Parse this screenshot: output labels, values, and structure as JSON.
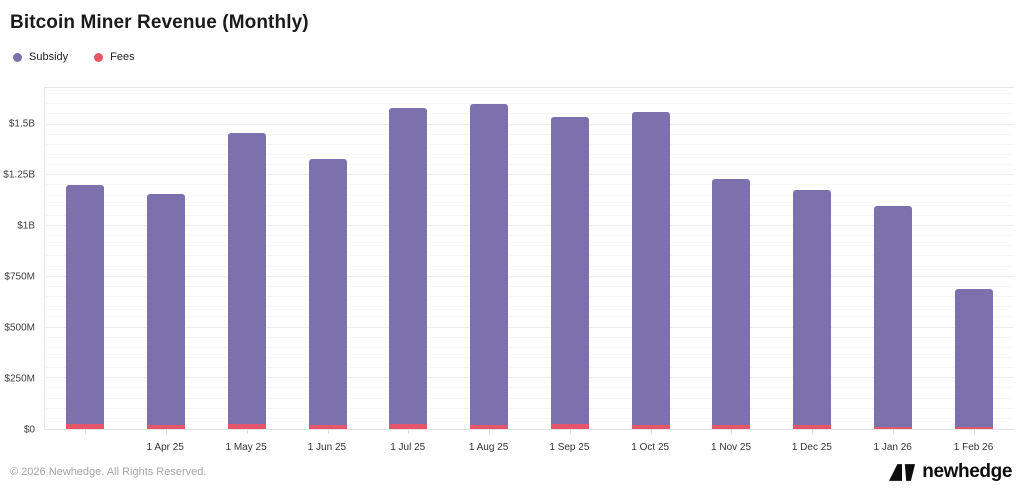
{
  "title": "Bitcoin Miner Revenue (Monthly)",
  "legend": [
    {
      "label": "Subsidy",
      "color": "#7C71AD"
    },
    {
      "label": "Fees",
      "color": "#E5566B"
    }
  ],
  "footer": {
    "copyright": "© 2026 Newhedge. All Rights Reserved.",
    "brand": "newhedge"
  },
  "chart_data": {
    "type": "bar",
    "stacked": true,
    "title": "Bitcoin Miner Revenue (Monthly)",
    "unit": "USD millions",
    "legend_position": "top-left",
    "grid": true,
    "grid_step": 50,
    "ylim": [
      0,
      1680
    ],
    "categories": [
      "",
      "1 Apr 25",
      "1 May 25",
      "1 Jun 25",
      "1 Jul 25",
      "1 Aug 25",
      "1 Sep 25",
      "1 Oct 25",
      "1 Nov 25",
      "1 Dec 25",
      "1 Jan 26",
      "1 Feb 26"
    ],
    "series": [
      {
        "name": "Subsidy",
        "color": "#7C71AD",
        "values": [
          1176,
          1140,
          1433,
          1310,
          1555,
          1578,
          1512,
          1538,
          1212,
          1162,
          1089,
          682
        ]
      },
      {
        "name": "Fees",
        "color": "#E5566B",
        "values": [
          24,
          20,
          27,
          20,
          25,
          22,
          23,
          22,
          18,
          18,
          11,
          8
        ]
      }
    ],
    "y_ticks": [
      {
        "value": 0,
        "label": "$0"
      },
      {
        "value": 250,
        "label": "$250M"
      },
      {
        "value": 500,
        "label": "$500M"
      },
      {
        "value": 750,
        "label": "$750M"
      },
      {
        "value": 1000,
        "label": "$1B"
      },
      {
        "value": 1250,
        "label": "$1.25B"
      },
      {
        "value": 1500,
        "label": "$1.5B"
      }
    ]
  }
}
